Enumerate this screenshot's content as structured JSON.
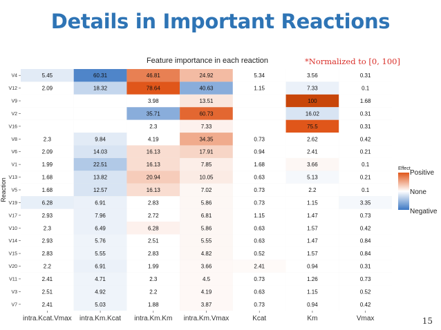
{
  "slide": {
    "title": "Details in Important Reactions",
    "note": "*Normalized to [0, 100]",
    "page_number": "15"
  },
  "colors": {
    "positive": "#e0561a",
    "none": "#ffffff",
    "negative": "#3b77c3",
    "title": "#2e74b5",
    "note": "#d9302a"
  },
  "chart_data": {
    "type": "heatmap",
    "title": "Feature importance in each reaction",
    "xlabel": "",
    "ylabel": "Reaction",
    "columns": [
      "intra.Kcat.Vmax",
      "intra.Km.Kcat",
      "intra.Km.Km",
      "intra.Km.Vmax",
      "Kcat",
      "Km",
      "Vmax"
    ],
    "rows": [
      {
        "label": "V4",
        "values": [
          "5.45",
          "60.31",
          "46.81",
          "24.92",
          "5.34",
          "3.56",
          "0.31"
        ],
        "effects": [
          -0.15,
          -0.9,
          0.75,
          0.4,
          0,
          0,
          0
        ]
      },
      {
        "label": "V12",
        "values": [
          "2.09",
          "18.32",
          "78.64",
          "40.63",
          "1.15",
          "7.33",
          "0.1"
        ],
        "effects": [
          0,
          -0.3,
          1,
          -0.6,
          0,
          -0.1,
          0
        ]
      },
      {
        "label": "V9",
        "values": [
          "",
          "",
          "3.98",
          "13.51",
          "",
          "100",
          "1.68"
        ],
        "effects": [
          0,
          0,
          0,
          0.15,
          0,
          1.2,
          0
        ]
      },
      {
        "label": "V2",
        "values": [
          "",
          "",
          "35.71",
          "60.73",
          "",
          "16.02",
          "0.31"
        ],
        "effects": [
          0,
          0,
          -0.6,
          0.9,
          0,
          -0.2,
          0
        ]
      },
      {
        "label": "V16",
        "values": [
          "",
          "",
          "2.3",
          "7.33",
          "",
          "75.5",
          "0.31"
        ],
        "effects": [
          0,
          0,
          0,
          0.08,
          0,
          1,
          0
        ]
      },
      {
        "label": "V8",
        "values": [
          "2.3",
          "9.84",
          "4.19",
          "34.35",
          "0.73",
          "2.62",
          "0.42"
        ],
        "effects": [
          0,
          -0.15,
          0,
          0.5,
          0,
          0,
          0
        ]
      },
      {
        "label": "V6",
        "values": [
          "2.09",
          "14.03",
          "16.13",
          "17.91",
          "0.94",
          "2.41",
          "0.21"
        ],
        "effects": [
          0,
          -0.2,
          0.2,
          0.25,
          0,
          0,
          0
        ]
      },
      {
        "label": "V1",
        "values": [
          "1.99",
          "22.51",
          "16.13",
          "7.85",
          "1.68",
          "3.66",
          "0.1"
        ],
        "effects": [
          0,
          -0.4,
          0.2,
          0.1,
          0,
          0.05,
          0
        ]
      },
      {
        "label": "V13",
        "values": [
          "1.68",
          "13.82",
          "20.94",
          "10.05",
          "0.63",
          "5.13",
          "0.21"
        ],
        "effects": [
          0,
          -0.2,
          0.3,
          0.12,
          0,
          -0.05,
          0
        ]
      },
      {
        "label": "V5",
        "values": [
          "1.68",
          "12.57",
          "16.13",
          "7.02",
          "0.73",
          "2.2",
          "0.1"
        ],
        "effects": [
          0,
          -0.2,
          0.2,
          0.05,
          0,
          0,
          0
        ]
      },
      {
        "label": "V19",
        "values": [
          "6.28",
          "6.91",
          "2.83",
          "5.86",
          "0.73",
          "1.15",
          "3.35"
        ],
        "effects": [
          -0.12,
          -0.1,
          0,
          0.05,
          0,
          0,
          -0.05
        ]
      },
      {
        "label": "V17",
        "values": [
          "2.93",
          "7.96",
          "2.72",
          "6.81",
          "1.15",
          "1.47",
          "0.73"
        ],
        "effects": [
          0,
          -0.1,
          0,
          0.05,
          0,
          0,
          0
        ]
      },
      {
        "label": "V10",
        "values": [
          "2.3",
          "6.49",
          "6.28",
          "5.86",
          "0.63",
          "1.57",
          "0.42"
        ],
        "effects": [
          0,
          -0.1,
          0.08,
          0.05,
          0,
          0,
          0
        ]
      },
      {
        "label": "V14",
        "values": [
          "2.93",
          "5.76",
          "2.51",
          "5.55",
          "0.63",
          "1.47",
          "0.84"
        ],
        "effects": [
          0,
          -0.08,
          0,
          0.05,
          0,
          0,
          0
        ]
      },
      {
        "label": "V15",
        "values": [
          "2.83",
          "5.55",
          "2.83",
          "4.82",
          "0.52",
          "1.57",
          "0.84"
        ],
        "effects": [
          0,
          -0.08,
          0,
          0.05,
          0,
          0,
          0
        ]
      },
      {
        "label": "V20",
        "values": [
          "2.2",
          "6.91",
          "1.99",
          "3.66",
          "2.41",
          "0.94",
          "0.31"
        ],
        "effects": [
          0,
          -0.1,
          0,
          0.04,
          0.03,
          0,
          0
        ]
      },
      {
        "label": "V11",
        "values": [
          "2.41",
          "4.71",
          "2.3",
          "4.5",
          "0.73",
          "1.26",
          "0.73"
        ],
        "effects": [
          0,
          -0.08,
          0,
          0.04,
          0,
          0,
          0
        ]
      },
      {
        "label": "V3",
        "values": [
          "2.51",
          "4.92",
          "2.2",
          "4.19",
          "0.63",
          "1.15",
          "0.52"
        ],
        "effects": [
          0,
          -0.08,
          0,
          0.04,
          0,
          0,
          0
        ]
      },
      {
        "label": "V7",
        "values": [
          "2.41",
          "5.03",
          "1.88",
          "3.87",
          "0.73",
          "0.94",
          "0.42"
        ],
        "effects": [
          0,
          -0.08,
          0,
          0.04,
          0,
          0,
          0
        ]
      }
    ],
    "legend": {
      "title": "Effect",
      "labels": [
        "Positive",
        "None",
        "Negative"
      ],
      "placement": "right"
    },
    "grid": false
  }
}
